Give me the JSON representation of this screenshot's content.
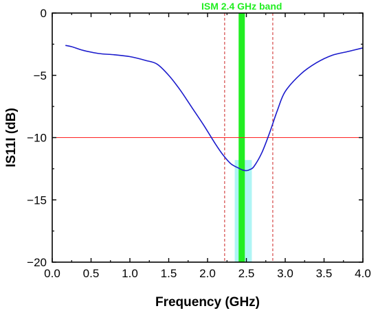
{
  "chart_data": {
    "type": "line",
    "xlabel": "Frequency (GHz)",
    "ylabel": "IS11I (dB)",
    "xlim": [
      0.0,
      4.0
    ],
    "ylim": [
      -20,
      0
    ],
    "xticks": [
      "0.0",
      "0.5",
      "1.0",
      "1.5",
      "2.0",
      "2.5",
      "3.0",
      "3.5",
      "4.0"
    ],
    "yticks": [
      "0",
      "-5",
      "-10",
      "-15",
      "-20"
    ],
    "grid": false,
    "series": [
      {
        "color": "#1a1acc",
        "x": [
          0.17,
          0.25,
          0.4,
          0.6,
          0.8,
          1.0,
          1.2,
          1.35,
          1.5,
          1.65,
          1.8,
          1.95,
          2.1,
          2.2,
          2.3,
          2.4,
          2.45,
          2.5,
          2.55,
          2.6,
          2.7,
          2.8,
          2.9,
          3.0,
          3.2,
          3.4,
          3.6,
          3.8,
          4.0
        ],
        "y": [
          -2.6,
          -2.7,
          -3.0,
          -3.25,
          -3.35,
          -3.5,
          -3.8,
          -4.1,
          -5.0,
          -6.2,
          -7.6,
          -9.0,
          -10.5,
          -11.4,
          -12.1,
          -12.45,
          -12.6,
          -12.65,
          -12.55,
          -12.3,
          -11.2,
          -9.6,
          -7.8,
          -6.3,
          -4.9,
          -4.0,
          -3.4,
          -3.1,
          -2.8
        ]
      }
    ],
    "reference_line": {
      "y": -10,
      "color": "#ff2020"
    },
    "bandwidth_markers": {
      "x": [
        2.22,
        2.84
      ],
      "color": "#cc2222"
    },
    "ism_band": {
      "label": "ISM 2.4 GHz band",
      "x_range": [
        2.4,
        2.48
      ],
      "color": "#22ee22",
      "shade_range": [
        2.35,
        2.57
      ],
      "shade_y_range": [
        -20,
        -11.8
      ],
      "shade_color": "#aff5f5"
    }
  }
}
